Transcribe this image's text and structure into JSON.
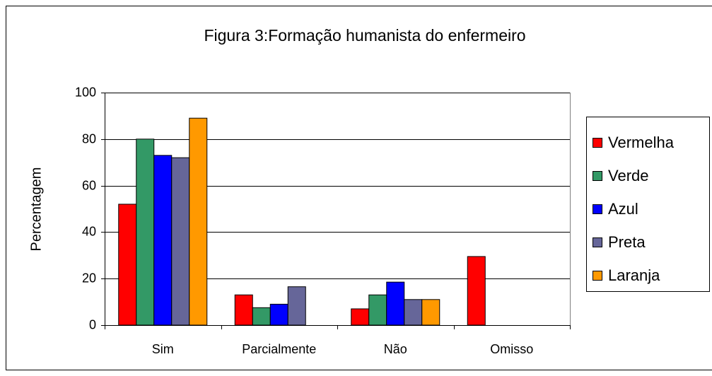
{
  "chart_data": {
    "type": "bar",
    "title": "Figura 3:Formação humanista do enfermeiro",
    "y_label": "Percentagem",
    "categories": [
      "Sim",
      "Parcialmente",
      "Não",
      "Omisso"
    ],
    "series": [
      {
        "name": "Vermelha",
        "color": "#ff0000",
        "values": [
          52,
          13,
          7,
          29.5
        ]
      },
      {
        "name": "Verde",
        "color": "#339966",
        "values": [
          80,
          7.5,
          13,
          0
        ]
      },
      {
        "name": "Azul",
        "color": "#0000ff",
        "values": [
          73,
          9,
          18.5,
          0
        ]
      },
      {
        "name": "Preta",
        "color": "#666699",
        "values": [
          72,
          16.5,
          11,
          0
        ]
      },
      {
        "name": "Laranja",
        "color": "#ff9900",
        "values": [
          89,
          0,
          11,
          0
        ]
      }
    ],
    "ylim": [
      0,
      100
    ],
    "yticks": [
      0,
      20,
      40,
      60,
      80,
      100
    ],
    "grid": true,
    "legend": "right"
  }
}
